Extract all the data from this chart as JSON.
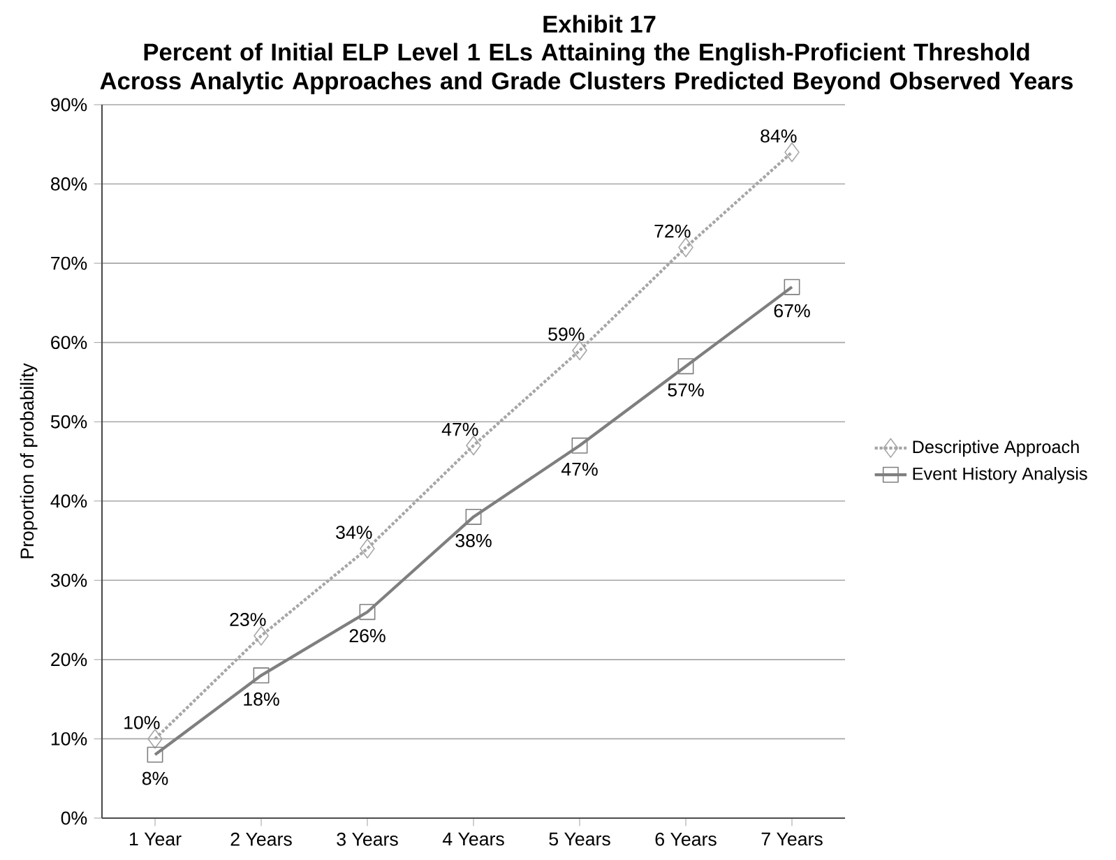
{
  "chart_data": {
    "type": "line",
    "title": "Exhibit 17",
    "subtitle": "Percent of Initial ELP Level 1 ELs Attaining the English-Proficient Threshold Across Analytic Approaches and Grade Clusters Predicted Beyond Observed Years",
    "categories": [
      "1 Year",
      "2 Years",
      "3 Years",
      "4 Years",
      "5 Years",
      "6 Years",
      "7 Years"
    ],
    "ylabel": "Proportion of probability",
    "ylim": [
      0,
      90
    ],
    "yticks": [
      {
        "value": 0,
        "label": "0%"
      },
      {
        "value": 10,
        "label": "10%"
      },
      {
        "value": 20,
        "label": "20%"
      },
      {
        "value": 30,
        "label": "30%"
      },
      {
        "value": 40,
        "label": "40%"
      },
      {
        "value": 50,
        "label": "50%"
      },
      {
        "value": 60,
        "label": "60%"
      },
      {
        "value": 70,
        "label": "70%"
      },
      {
        "value": 80,
        "label": "80%"
      },
      {
        "value": 90,
        "label": "90%"
      }
    ],
    "grid": "y",
    "legend": "right",
    "series": [
      {
        "name": "Descriptive Approach",
        "color": "#a6a6a6",
        "marker": "diamond",
        "line_style": "dotted",
        "values": [
          10,
          23,
          34,
          47,
          59,
          72,
          84
        ],
        "value_labels": [
          "10%",
          "23%",
          "34%",
          "47%",
          "59%",
          "72%",
          "84%"
        ]
      },
      {
        "name": "Event History Analysis",
        "color": "#7f7f7f",
        "marker": "square",
        "line_style": "solid",
        "values": [
          8,
          18,
          26,
          38,
          47,
          57,
          67
        ],
        "value_labels": [
          "8%",
          "18%",
          "26%",
          "38%",
          "47%",
          "57%",
          "67%"
        ]
      }
    ]
  }
}
